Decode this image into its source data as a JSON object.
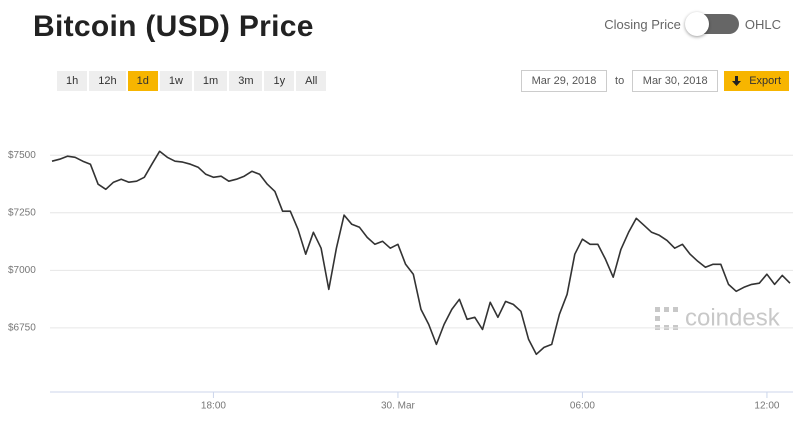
{
  "title": "Bitcoin (USD) Price",
  "toggle": {
    "left": "Closing Price",
    "right": "OHLC"
  },
  "ranges": [
    "1h",
    "12h",
    "1d",
    "1w",
    "1m",
    "3m",
    "1y",
    "All"
  ],
  "active_range": "1d",
  "date_from": "Mar 29, 2018",
  "date_separator": "to",
  "date_to": "Mar 30, 2018",
  "export": "Export",
  "watermark": "coindesk",
  "chart_data": {
    "type": "line",
    "x": [
      12.75,
      13,
      13.25,
      13.5,
      13.75,
      14,
      14.25,
      14.5,
      14.75,
      15,
      15.25,
      15.5,
      15.75,
      16,
      16.25,
      16.5,
      16.75,
      17,
      17.25,
      17.5,
      17.75,
      18,
      18.25,
      18.5,
      18.75,
      19,
      19.25,
      19.5,
      19.75,
      20,
      20.25,
      20.5,
      20.75,
      21,
      21.25,
      21.5,
      21.75,
      22,
      22.25,
      22.5,
      22.75,
      23,
      23.25,
      23.5,
      23.75,
      24,
      24.25,
      24.5,
      24.75,
      25,
      25.25,
      25.5,
      25.75,
      26,
      26.25,
      26.5,
      26.75,
      27,
      27.25,
      27.5,
      27.75,
      28,
      28.25,
      28.5,
      28.75,
      29,
      29.25,
      29.5,
      29.75,
      30,
      30.25,
      30.5,
      30.75,
      31,
      31.25,
      31.5,
      31.75,
      32,
      32.25,
      32.5,
      32.75,
      33,
      33.25,
      33.5,
      33.75,
      34,
      34.25,
      34.5,
      34.75,
      35,
      35.25,
      35.5,
      35.75,
      36,
      36.25,
      36.5,
      36.75
    ],
    "series": [
      {
        "name": "Closing Price",
        "color": "#333333",
        "values": [
          7474,
          7483,
          7496,
          7491,
          7474,
          7461,
          7374,
          7352,
          7383,
          7396,
          7383,
          7387,
          7404,
          7461,
          7517,
          7491,
          7474,
          7470,
          7461,
          7448,
          7417,
          7404,
          7409,
          7387,
          7396,
          7409,
          7430,
          7417,
          7374,
          7343,
          7257,
          7257,
          7178,
          7070,
          7165,
          7096,
          6917,
          7096,
          7240,
          7200,
          7187,
          7143,
          7113,
          7126,
          7096,
          7113,
          7026,
          6983,
          6830,
          6765,
          6678,
          6765,
          6830,
          6874,
          6787,
          6796,
          6743,
          6861,
          6796,
          6865,
          6852,
          6822,
          6700,
          6635,
          6665,
          6678,
          6809,
          6896,
          7070,
          7135,
          7113,
          7113,
          7048,
          6970,
          7091,
          7165,
          7226,
          7196,
          7165,
          7152,
          7130,
          7096,
          7113,
          7070,
          7039,
          7013,
          7026,
          7026,
          6939,
          6909,
          6926,
          6939,
          6944,
          6983,
          6939,
          6978,
          6944
        ]
      }
    ],
    "xlim": [
      12.75,
      36.75
    ],
    "xticks": [
      {
        "value": 18,
        "label": "18:00"
      },
      {
        "value": 24,
        "label": "30. Mar"
      },
      {
        "value": 30,
        "label": "06:00"
      },
      {
        "value": 36,
        "label": "12:00"
      }
    ],
    "ylim": [
      6480,
      7740
    ],
    "yticks": [
      {
        "value": 6750,
        "label": "$6750"
      },
      {
        "value": 7000,
        "label": "$7000"
      },
      {
        "value": 7250,
        "label": "$7250"
      },
      {
        "value": 7500,
        "label": "$7500"
      }
    ],
    "grid": true
  }
}
